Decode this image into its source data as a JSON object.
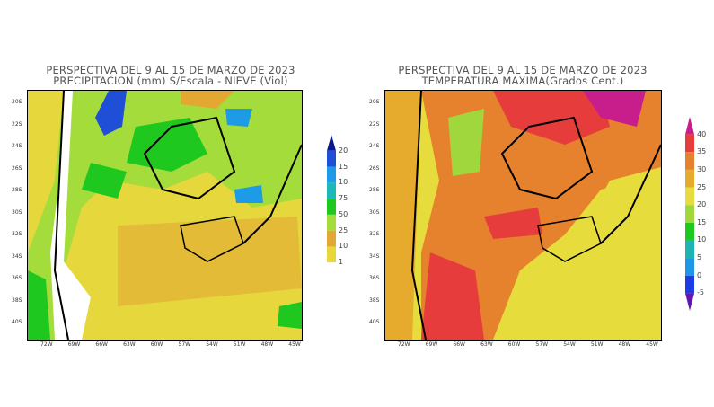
{
  "left_panel": {
    "title_line1": "PERSPECTIVA DEL 9 AL 15  DE MARZO DE 2023",
    "title_line2": "PRECIPITACION (mm) S/Escala - NIEVE (Viol)",
    "colorbar_labels": [
      "20",
      "15",
      "10",
      "75",
      "50",
      "25",
      "10",
      "1"
    ],
    "colorbar_colors": [
      "#0a1a8c",
      "#1f4fd6",
      "#1e9be6",
      "#1fb8b8",
      "#1ec81e",
      "#a4dc3c",
      "#e3a832",
      "#e6d83c"
    ]
  },
  "right_panel": {
    "title_line1": "PERSPECTIVA DEL 9 AL 15  DE MARZO DE 2023",
    "title_line2": "TEMPERATURA MAXIMA(Grados Cent.)",
    "colorbar_labels": [
      "40",
      "35",
      "30",
      "25",
      "20",
      "15",
      "10",
      "5",
      "0",
      "-5"
    ],
    "colorbar_colors": [
      "#c81e8c",
      "#e63c3c",
      "#e6822d",
      "#e6aa2d",
      "#e6dc3c",
      "#a0d73c",
      "#1ec81e",
      "#1eb4b4",
      "#1e96e6",
      "#1e3ce6",
      "#6414b4"
    ]
  },
  "lat_labels": [
    "20S",
    "22S",
    "24S",
    "26S",
    "28S",
    "30S",
    "32S",
    "34S",
    "36S",
    "38S",
    "40S"
  ],
  "lon_labels": [
    "72W",
    "69W",
    "66W",
    "63W",
    "60W",
    "57W",
    "54W",
    "51W",
    "48W",
    "45W"
  ]
}
